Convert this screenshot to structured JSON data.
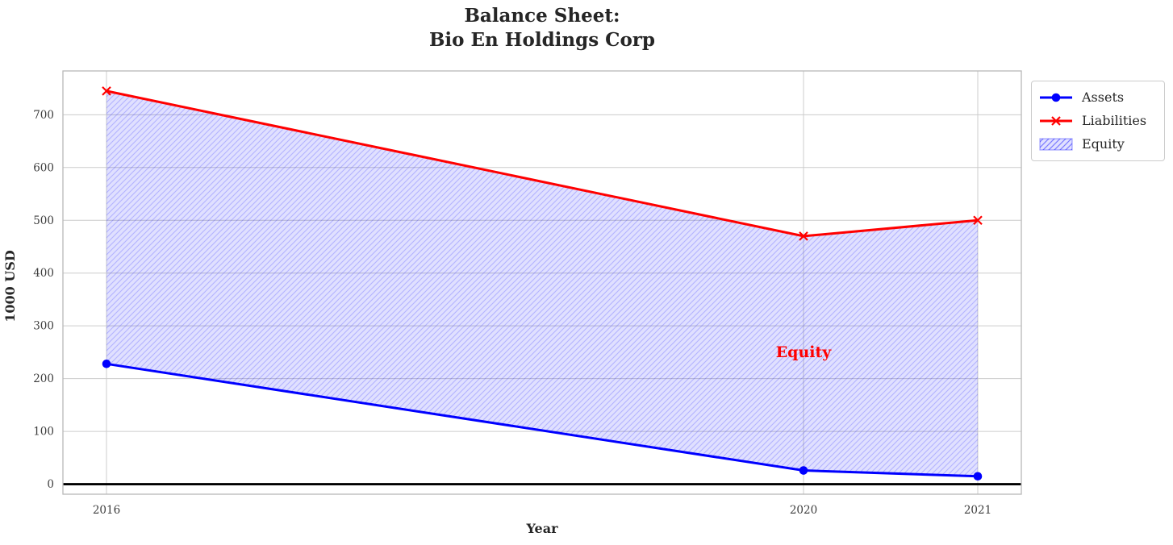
{
  "chart_data": {
    "type": "line",
    "title": "Balance Sheet:\nBio En Holdings Corp",
    "title_lines": [
      "Balance Sheet:",
      "Bio En Holdings Corp"
    ],
    "xlabel": "Year",
    "ylabel": "1000 USD",
    "x": [
      2016,
      2020,
      2021
    ],
    "series": [
      {
        "name": "Assets",
        "values": [
          228,
          26,
          15
        ],
        "color": "#0000ff",
        "marker": "circle",
        "line_width": 3
      },
      {
        "name": "Liabilities",
        "values": [
          745,
          470,
          500
        ],
        "color": "#ff0000",
        "marker": "x",
        "line_width": 3
      }
    ],
    "fill_between": {
      "name": "Equity",
      "upper_series": "Liabilities",
      "lower_series": "Assets",
      "fill_color": "rgba(0,0,255,0.12)",
      "hatch_color": "rgba(0,0,255,0.20)",
      "legend_hatch_color": "rgba(0,0,255,0.45)",
      "legend_edge_color": "rgba(0,0,255,0.35)",
      "hatch": "//"
    },
    "annotation": {
      "text": "Equity",
      "x": 2020,
      "y": 250,
      "color": "#ff0000"
    },
    "xlim": [
      2015.75,
      2021.25
    ],
    "ylim": [
      -19,
      783
    ],
    "xticks": [
      2016,
      2020,
      2021
    ],
    "yticks": [
      0,
      100,
      200,
      300,
      400,
      500,
      600,
      700
    ],
    "grid": true,
    "grid_color": "#cccccc",
    "spine_color": "#b8b8b8",
    "tick_label_color": "#3d3d3d",
    "zero_line": {
      "y": 0,
      "color": "#000000",
      "width": 2.8
    },
    "legend_position": "upper-right-outside"
  }
}
